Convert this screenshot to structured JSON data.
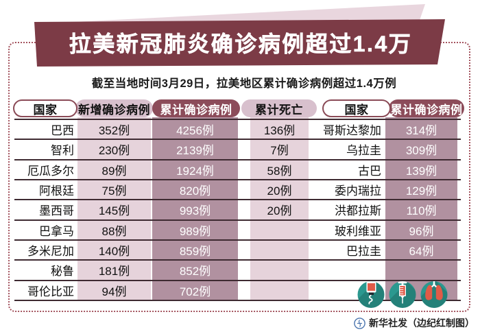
{
  "title": "拉美新冠肺炎确诊病例超过1.4万",
  "subtitle": "截至当地时间3月29日，拉美地区累计确诊病例超过1.4万例",
  "credit": "新华社发（边纪红制图）",
  "colors": {
    "banner": "#7c3b46",
    "dark_pill": "#8c4c5a",
    "pink_pill": "#d8c0cd",
    "pink_column": "#e6d3db",
    "mauve_column": "#b191a0",
    "teal_icon": "#2b988f",
    "icon_red": "#e05b48",
    "dotted_border": "#a3525d"
  },
  "icons": [
    "iv-drip-icon",
    "syringe-icon",
    "lungs-icon",
    "xinhua-logo"
  ],
  "chart_data": {
    "type": "table",
    "title": "拉美新冠肺炎确诊病例超过1.4万",
    "subtitle": "截至当地时间3月29日，拉美地区累计确诊病例超过1.4万例",
    "left_table": {
      "headers": [
        "国家",
        "新增确诊病例",
        "累计确诊病例",
        "累计死亡"
      ],
      "rows": [
        [
          "巴西",
          "352例",
          "4256例",
          "136例"
        ],
        [
          "智利",
          "230例",
          "2139例",
          "7例"
        ],
        [
          "厄瓜多尔",
          "89例",
          "1924例",
          "58例"
        ],
        [
          "阿根廷",
          "75例",
          "820例",
          "20例"
        ],
        [
          "墨西哥",
          "145例",
          "993例",
          "20例"
        ],
        [
          "巴拿马",
          "88例",
          "989例",
          ""
        ],
        [
          "多米尼加",
          "140例",
          "859例",
          ""
        ],
        [
          "秘鲁",
          "181例",
          "852例",
          ""
        ],
        [
          "哥伦比亚",
          "94例",
          "702例",
          ""
        ]
      ]
    },
    "right_table": {
      "headers": [
        "国家",
        "累计确诊病例"
      ],
      "rows": [
        [
          "哥斯达黎加",
          "314例"
        ],
        [
          "乌拉圭",
          "309例"
        ],
        [
          "古巴",
          "139例"
        ],
        [
          "委内瑞拉",
          "129例"
        ],
        [
          "洪都拉斯",
          "110例"
        ],
        [
          "玻利维亚",
          "96例"
        ],
        [
          "巴拉圭",
          "64例"
        ]
      ]
    }
  }
}
